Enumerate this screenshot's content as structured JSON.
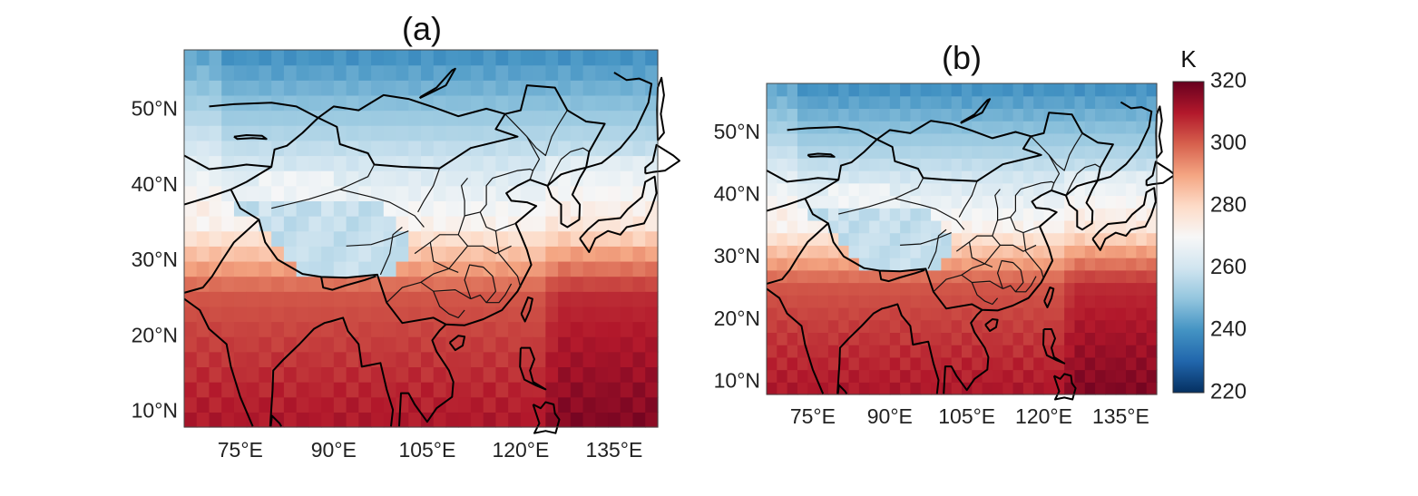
{
  "panels": [
    {
      "title": "(a)",
      "lat_ticks": [
        "10°N",
        "20°N",
        "30°N",
        "40°N",
        "50°N"
      ],
      "lat_values": [
        10,
        20,
        30,
        40,
        50
      ],
      "lon_ticks": [
        "75°E",
        "90°E",
        "105°E",
        "120°E",
        "135°E"
      ],
      "lon_values": [
        75,
        90,
        105,
        120,
        135
      ],
      "extent": {
        "lon": [
          66,
          142
        ],
        "lat": [
          8,
          58
        ]
      }
    },
    {
      "title": "(b)",
      "lat_ticks": [
        "10°N",
        "20°N",
        "30°N",
        "40°N",
        "50°N"
      ],
      "lat_values": [
        10,
        20,
        30,
        40,
        50
      ],
      "lon_ticks": [
        "75°E",
        "90°E",
        "105°E",
        "120°E",
        "135°E"
      ],
      "lon_values": [
        75,
        90,
        105,
        120,
        135
      ],
      "extent": {
        "lon": [
          66,
          142
        ],
        "lat": [
          8,
          58
        ]
      }
    }
  ],
  "colorbar": {
    "unit": "K",
    "ticks": [
      "220",
      "240",
      "260",
      "280",
      "300",
      "320"
    ],
    "tick_values": [
      220,
      240,
      260,
      280,
      300,
      320
    ],
    "range": [
      220,
      320
    ],
    "colors": [
      "#053061",
      "#2166ac",
      "#4393c3",
      "#92c5de",
      "#d1e5f0",
      "#f7f7f7",
      "#fddbc7",
      "#f4a582",
      "#d6604d",
      "#b2182b",
      "#67001f"
    ]
  }
}
